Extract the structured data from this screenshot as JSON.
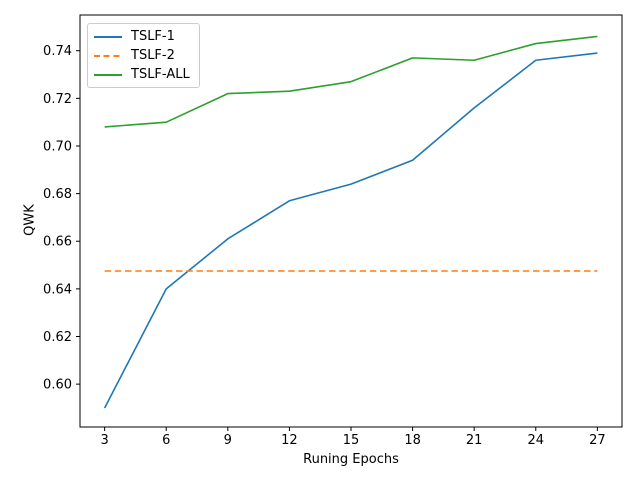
{
  "figure": {
    "background_color": "#ffffff",
    "spine_color": "#000000",
    "legend_border_color": "#cccccc"
  },
  "chart_data": {
    "type": "line",
    "xlabel": "Runing Epochs",
    "ylabel": "QWK",
    "grid": false,
    "legend_position": "upper left",
    "x": [
      3,
      6,
      9,
      12,
      15,
      18,
      21,
      24,
      27
    ],
    "xticks": [
      3,
      6,
      9,
      12,
      15,
      18,
      21,
      24,
      27
    ],
    "yticks": [
      0.6,
      0.62,
      0.64,
      0.66,
      0.68,
      0.7,
      0.72,
      0.74
    ],
    "xlim": [
      1.8,
      28.2
    ],
    "ylim": [
      0.582,
      0.755
    ],
    "series": [
      {
        "name": "TSLF-1",
        "color": "#1f77b4",
        "style": "solid",
        "values": [
          0.59,
          0.64,
          0.661,
          0.677,
          0.684,
          0.694,
          0.716,
          0.736,
          0.739
        ]
      },
      {
        "name": "TSLF-2",
        "color": "#ff7f0e",
        "style": "dashed",
        "values": [
          0.6475,
          0.6475,
          0.6475,
          0.6475,
          0.6475,
          0.6475,
          0.6475,
          0.6475,
          0.6475
        ]
      },
      {
        "name": "TSLF-ALL",
        "color": "#2ca02c",
        "style": "solid",
        "values": [
          0.708,
          0.71,
          0.722,
          0.723,
          0.727,
          0.737,
          0.736,
          0.743,
          0.746
        ]
      }
    ]
  }
}
